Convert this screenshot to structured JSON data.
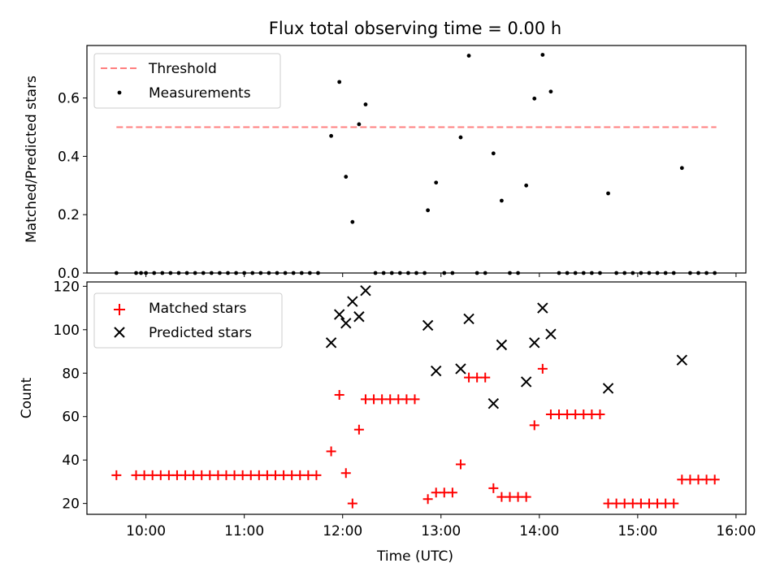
{
  "title": "Flux total observing time = 0.00 h",
  "chart_data": [
    {
      "type": "scatter",
      "ylabel": "Matched/Predicted stars",
      "ylim": [
        0,
        0.78
      ],
      "yticks": [
        "0.0",
        "0.2",
        "0.4",
        "0.6"
      ],
      "legend": {
        "placement": "top-left",
        "entries": [
          "Threshold",
          "Measurements"
        ]
      },
      "threshold": {
        "name": "Threshold",
        "value": 0.5,
        "x_range": [
          "09:42",
          "15:48"
        ],
        "color": "#ff7f7f",
        "style": "dashed"
      },
      "series": [
        {
          "name": "Measurements",
          "marker": "dot",
          "color": "#000000",
          "points": [
            [
              "09:42",
              0
            ],
            [
              "09:54",
              0
            ],
            [
              "09:57",
              0
            ],
            [
              "10:00",
              0
            ],
            [
              "10:05",
              0
            ],
            [
              "10:10",
              0
            ],
            [
              "10:15",
              0
            ],
            [
              "10:20",
              0
            ],
            [
              "10:25",
              0
            ],
            [
              "10:30",
              0
            ],
            [
              "10:35",
              0
            ],
            [
              "10:40",
              0
            ],
            [
              "10:45",
              0
            ],
            [
              "10:50",
              0
            ],
            [
              "10:55",
              0
            ],
            [
              "11:00",
              0
            ],
            [
              "11:05",
              0
            ],
            [
              "11:10",
              0
            ],
            [
              "11:15",
              0
            ],
            [
              "11:20",
              0
            ],
            [
              "11:25",
              0
            ],
            [
              "11:30",
              0
            ],
            [
              "11:35",
              0
            ],
            [
              "11:40",
              0
            ],
            [
              "11:45",
              0
            ],
            [
              "11:53",
              0.47
            ],
            [
              "11:58",
              0.655
            ],
            [
              "12:02",
              0.33
            ],
            [
              "12:06",
              0.175
            ],
            [
              "12:10",
              0.51
            ],
            [
              "12:14",
              0.578
            ],
            [
              "12:20",
              0
            ],
            [
              "12:25",
              0
            ],
            [
              "12:30",
              0
            ],
            [
              "12:35",
              0
            ],
            [
              "12:40",
              0
            ],
            [
              "12:45",
              0
            ],
            [
              "12:50",
              0
            ],
            [
              "12:52",
              0.215
            ],
            [
              "12:57",
              0.31
            ],
            [
              "13:02",
              0
            ],
            [
              "13:07",
              0
            ],
            [
              "13:12",
              0.465
            ],
            [
              "13:17",
              0.745
            ],
            [
              "13:22",
              0
            ],
            [
              "13:27",
              0
            ],
            [
              "13:32",
              0.41
            ],
            [
              "13:37",
              0.248
            ],
            [
              "13:42",
              0
            ],
            [
              "13:47",
              0
            ],
            [
              "13:52",
              0.3
            ],
            [
              "13:57",
              0.598
            ],
            [
              "14:02",
              0.748
            ],
            [
              "14:07",
              0.622
            ],
            [
              "14:12",
              0
            ],
            [
              "14:17",
              0
            ],
            [
              "14:22",
              0
            ],
            [
              "14:27",
              0
            ],
            [
              "14:32",
              0
            ],
            [
              "14:37",
              0
            ],
            [
              "14:42",
              0.273
            ],
            [
              "14:47",
              0
            ],
            [
              "14:52",
              0
            ],
            [
              "14:57",
              0
            ],
            [
              "15:02",
              0
            ],
            [
              "15:07",
              0
            ],
            [
              "15:12",
              0
            ],
            [
              "15:17",
              0
            ],
            [
              "15:22",
              0
            ],
            [
              "15:27",
              0.36
            ],
            [
              "15:32",
              0
            ],
            [
              "15:37",
              0
            ],
            [
              "15:42",
              0
            ],
            [
              "15:47",
              0
            ]
          ]
        }
      ]
    },
    {
      "type": "scatter",
      "xlabel": "Time (UTC)",
      "ylabel": "Count",
      "ylim": [
        15,
        122
      ],
      "yticks": [
        "20",
        "40",
        "60",
        "80",
        "100",
        "120"
      ],
      "xlim": [
        "09:24",
        "16:06"
      ],
      "xticks": [
        "10:00",
        "11:00",
        "12:00",
        "13:00",
        "14:00",
        "15:00",
        "16:00"
      ],
      "legend": {
        "placement": "top-left",
        "entries": [
          "Matched stars",
          "Predicted stars"
        ]
      },
      "series": [
        {
          "name": "Matched stars",
          "marker": "plus",
          "color": "#ff0000",
          "points": [
            [
              "09:42",
              33
            ],
            [
              "09:54",
              33
            ],
            [
              "09:59",
              33
            ],
            [
              "10:04",
              33
            ],
            [
              "10:09",
              33
            ],
            [
              "10:14",
              33
            ],
            [
              "10:19",
              33
            ],
            [
              "10:24",
              33
            ],
            [
              "10:29",
              33
            ],
            [
              "10:34",
              33
            ],
            [
              "10:39",
              33
            ],
            [
              "10:44",
              33
            ],
            [
              "10:49",
              33
            ],
            [
              "10:54",
              33
            ],
            [
              "10:59",
              33
            ],
            [
              "11:04",
              33
            ],
            [
              "11:09",
              33
            ],
            [
              "11:14",
              33
            ],
            [
              "11:19",
              33
            ],
            [
              "11:24",
              33
            ],
            [
              "11:29",
              33
            ],
            [
              "11:34",
              33
            ],
            [
              "11:39",
              33
            ],
            [
              "11:44",
              33
            ],
            [
              "11:53",
              44
            ],
            [
              "11:58",
              70
            ],
            [
              "12:02",
              34
            ],
            [
              "12:06",
              20
            ],
            [
              "12:10",
              54
            ],
            [
              "12:14",
              68
            ],
            [
              "12:19",
              68
            ],
            [
              "12:24",
              68
            ],
            [
              "12:29",
              68
            ],
            [
              "12:34",
              68
            ],
            [
              "12:39",
              68
            ],
            [
              "12:44",
              68
            ],
            [
              "12:52",
              22
            ],
            [
              "12:57",
              25
            ],
            [
              "13:02",
              25
            ],
            [
              "13:07",
              25
            ],
            [
              "13:12",
              38
            ],
            [
              "13:17",
              78
            ],
            [
              "13:22",
              78
            ],
            [
              "13:27",
              78
            ],
            [
              "13:32",
              27
            ],
            [
              "13:37",
              23
            ],
            [
              "13:42",
              23
            ],
            [
              "13:47",
              23
            ],
            [
              "13:52",
              23
            ],
            [
              "13:57",
              56
            ],
            [
              "14:02",
              82
            ],
            [
              "14:07",
              61
            ],
            [
              "14:12",
              61
            ],
            [
              "14:17",
              61
            ],
            [
              "14:22",
              61
            ],
            [
              "14:27",
              61
            ],
            [
              "14:32",
              61
            ],
            [
              "14:37",
              61
            ],
            [
              "14:42",
              20
            ],
            [
              "14:47",
              20
            ],
            [
              "14:52",
              20
            ],
            [
              "14:57",
              20
            ],
            [
              "15:02",
              20
            ],
            [
              "15:07",
              20
            ],
            [
              "15:12",
              20
            ],
            [
              "15:17",
              20
            ],
            [
              "15:22",
              20
            ],
            [
              "15:27",
              31
            ],
            [
              "15:32",
              31
            ],
            [
              "15:37",
              31
            ],
            [
              "15:42",
              31
            ],
            [
              "15:47",
              31
            ]
          ]
        },
        {
          "name": "Predicted stars",
          "marker": "x",
          "color": "#000000",
          "points": [
            [
              "11:53",
              94
            ],
            [
              "11:58",
              107
            ],
            [
              "12:02",
              103
            ],
            [
              "12:06",
              113
            ],
            [
              "12:10",
              106
            ],
            [
              "12:14",
              118
            ],
            [
              "12:52",
              102
            ],
            [
              "12:57",
              81
            ],
            [
              "13:12",
              82
            ],
            [
              "13:17",
              105
            ],
            [
              "13:32",
              66
            ],
            [
              "13:37",
              93
            ],
            [
              "13:52",
              76
            ],
            [
              "13:57",
              94
            ],
            [
              "14:02",
              110
            ],
            [
              "14:07",
              98
            ],
            [
              "14:42",
              73
            ],
            [
              "15:27",
              86
            ]
          ]
        }
      ]
    }
  ]
}
